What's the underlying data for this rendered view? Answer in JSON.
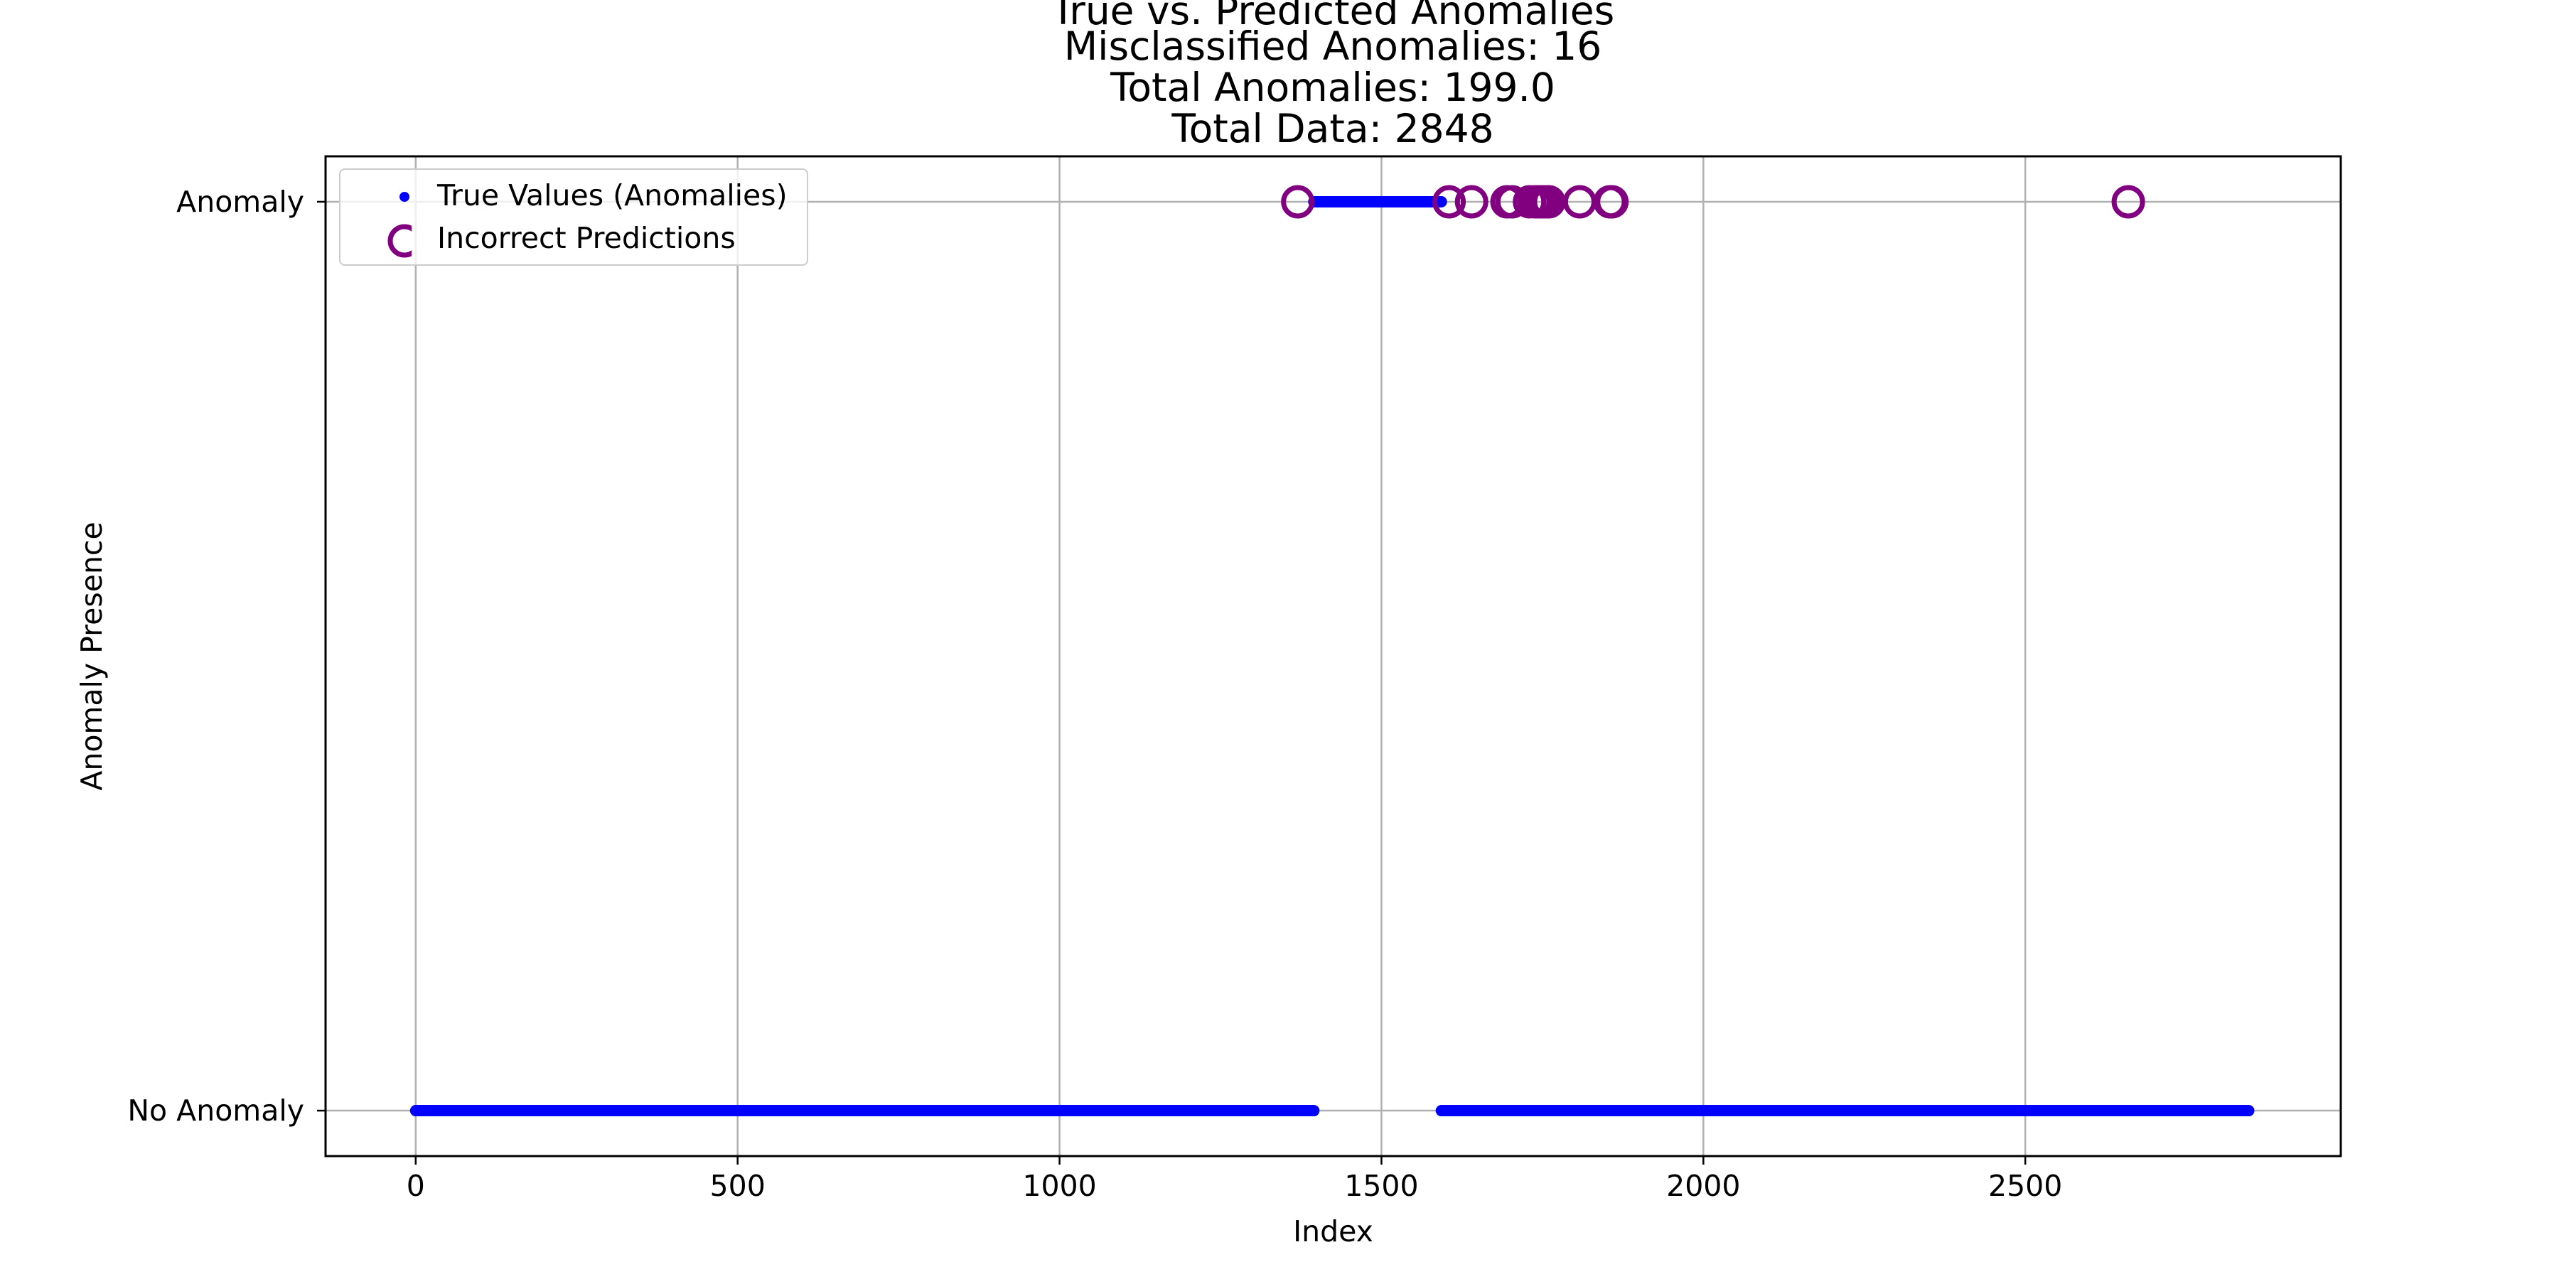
{
  "chart_data": {
    "type": "scatter",
    "title": "True vs. Predicted Anomalies",
    "subtitle_lines": [
      "Misclassified Anomalies: 16",
      "Total Anomalies: 199.0",
      "Total Data: 2848"
    ],
    "xlabel": "Index",
    "ylabel": "Anomaly Presence",
    "xlim": [
      -140,
      2990
    ],
    "ylim": [
      -0.05,
      1.05
    ],
    "x_ticks": [
      0,
      500,
      1000,
      1500,
      2000,
      2500
    ],
    "y_ticks": [
      {
        "value": 0,
        "label": "No Anomaly"
      },
      {
        "value": 1,
        "label": "Anomaly"
      }
    ],
    "grid": true,
    "legend_position": "upper left",
    "series": [
      {
        "name": "True Values (Anomalies)",
        "color": "#0000ff",
        "marker": "dot",
        "segments": [
          {
            "x_start": 0,
            "x_end": 1395,
            "y": 0
          },
          {
            "x_start": 1395,
            "x_end": 1593,
            "y": 1
          },
          {
            "x_start": 1593,
            "x_end": 2847,
            "y": 0
          }
        ]
      },
      {
        "name": "Incorrect Predictions",
        "color": "#800080",
        "marker": "hollow-circle",
        "points": [
          {
            "x": 1370,
            "y": 1
          },
          {
            "x": 1605,
            "y": 1
          },
          {
            "x": 1640,
            "y": 1
          },
          {
            "x": 1695,
            "y": 1
          },
          {
            "x": 1703,
            "y": 1
          },
          {
            "x": 1730,
            "y": 1
          },
          {
            "x": 1738,
            "y": 1
          },
          {
            "x": 1744,
            "y": 1
          },
          {
            "x": 1748,
            "y": 1
          },
          {
            "x": 1752,
            "y": 1
          },
          {
            "x": 1756,
            "y": 1
          },
          {
            "x": 1760,
            "y": 1
          },
          {
            "x": 1808,
            "y": 1
          },
          {
            "x": 1855,
            "y": 1
          },
          {
            "x": 1858,
            "y": 1
          },
          {
            "x": 2660,
            "y": 1
          }
        ]
      }
    ]
  }
}
